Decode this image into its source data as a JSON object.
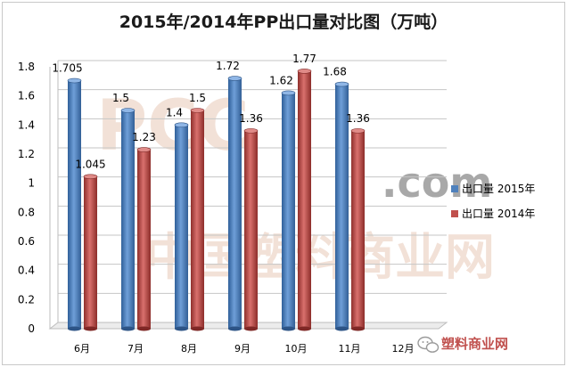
{
  "chart_data": {
    "type": "bar",
    "title": "2015年/2014年PP出口量对比图（万吨）",
    "categories": [
      "6月",
      "7月",
      "8月",
      "9月",
      "10月",
      "11月",
      "12月"
    ],
    "series": [
      {
        "name": "出口量 2015年",
        "color": "#4f81bd",
        "values": [
          1.705,
          1.5,
          1.4,
          1.72,
          1.62,
          1.68,
          null
        ],
        "labels": [
          "1.705",
          "1.5",
          "1.4",
          "1.72",
          "1.62",
          "1.68",
          ""
        ]
      },
      {
        "name": "出口量 2014年",
        "color": "#c0504d",
        "values": [
          1.045,
          1.23,
          1.5,
          1.36,
          1.77,
          1.36,
          null
        ],
        "labels": [
          "1.045",
          "1.23",
          "1.5",
          "1.36",
          "1.77",
          "1.36",
          ""
        ]
      }
    ],
    "ylim": [
      0,
      1.8
    ],
    "yticks": [
      "0",
      "0.2",
      "0.4",
      "0.6",
      "0.8",
      "1",
      "1.2",
      "1.4",
      "1.6",
      "1.8"
    ],
    "grid": true,
    "legend_position": "right",
    "xlabel": "",
    "ylabel": ""
  },
  "watermark": {
    "letters": "PCC",
    "domain": ".com",
    "cn": "中国塑料商业网"
  },
  "signature": {
    "icon": "wechat-icon",
    "text": "塑料商业网"
  }
}
